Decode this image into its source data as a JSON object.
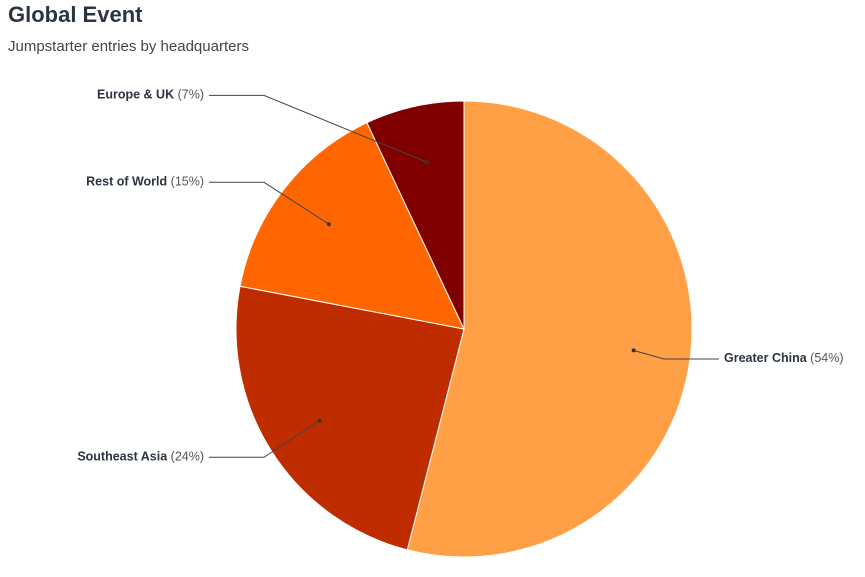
{
  "chart_data": {
    "type": "pie",
    "title": "Global Event",
    "subtitle": "Jumpstarter entries by headquarters",
    "categories": [
      "Greater China",
      "Southeast Asia",
      "Rest of World",
      "Europe & UK"
    ],
    "values": [
      54,
      24,
      15,
      7
    ],
    "value_labels": [
      "(54%)",
      "(24%)",
      "(15%)",
      "(7%)"
    ],
    "colors": [
      "#ffa047",
      "#bf2c00",
      "#ff6600",
      "#800000"
    ]
  }
}
